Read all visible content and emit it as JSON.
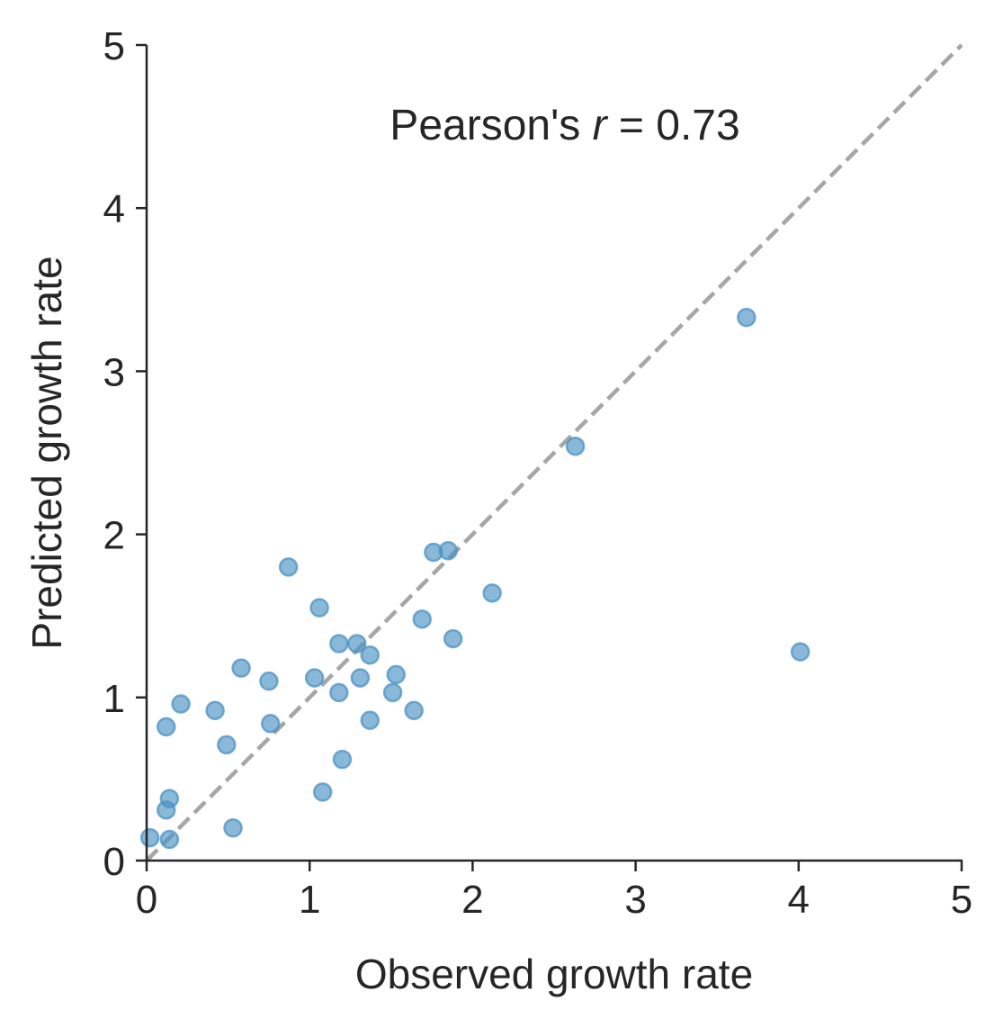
{
  "chart_data": {
    "type": "scatter",
    "title": "",
    "xlabel": "Observed growth rate",
    "ylabel": "Predicted growth rate",
    "xlim": [
      0,
      5
    ],
    "ylim": [
      0,
      5
    ],
    "xticks": [
      "0",
      "1",
      "2",
      "3",
      "4",
      "5"
    ],
    "yticks": [
      "0",
      "1",
      "2",
      "3",
      "4",
      "5"
    ],
    "grid": false,
    "legend": null,
    "annotation": {
      "prefix": "Pearson's ",
      "var": "r",
      "suffix": " = 0.73"
    },
    "reference_line": {
      "style": "dashed",
      "from": [
        0,
        0
      ],
      "to": [
        5,
        5
      ],
      "color": "#a6a6a6"
    },
    "marker_color": "#4c92c3",
    "points": [
      [
        0.02,
        0.14
      ],
      [
        0.12,
        0.82
      ],
      [
        0.21,
        0.96
      ],
      [
        0.14,
        0.38
      ],
      [
        0.12,
        0.31
      ],
      [
        0.14,
        0.13
      ],
      [
        0.42,
        0.92
      ],
      [
        0.49,
        0.71
      ],
      [
        0.53,
        0.2
      ],
      [
        0.58,
        1.18
      ],
      [
        0.75,
        1.1
      ],
      [
        0.76,
        0.84
      ],
      [
        0.87,
        1.8
      ],
      [
        1.03,
        1.12
      ],
      [
        1.06,
        1.55
      ],
      [
        1.18,
        1.33
      ],
      [
        1.18,
        1.03
      ],
      [
        1.08,
        0.42
      ],
      [
        1.2,
        0.62
      ],
      [
        1.29,
        1.33
      ],
      [
        1.31,
        1.12
      ],
      [
        1.37,
        1.26
      ],
      [
        1.37,
        0.86
      ],
      [
        1.51,
        1.03
      ],
      [
        1.53,
        1.14
      ],
      [
        1.64,
        0.92
      ],
      [
        1.69,
        1.48
      ],
      [
        1.76,
        1.89
      ],
      [
        1.85,
        1.9
      ],
      [
        1.88,
        1.36
      ],
      [
        2.12,
        1.64
      ],
      [
        2.63,
        2.54
      ],
      [
        3.68,
        3.33
      ],
      [
        4.01,
        1.28
      ]
    ]
  }
}
